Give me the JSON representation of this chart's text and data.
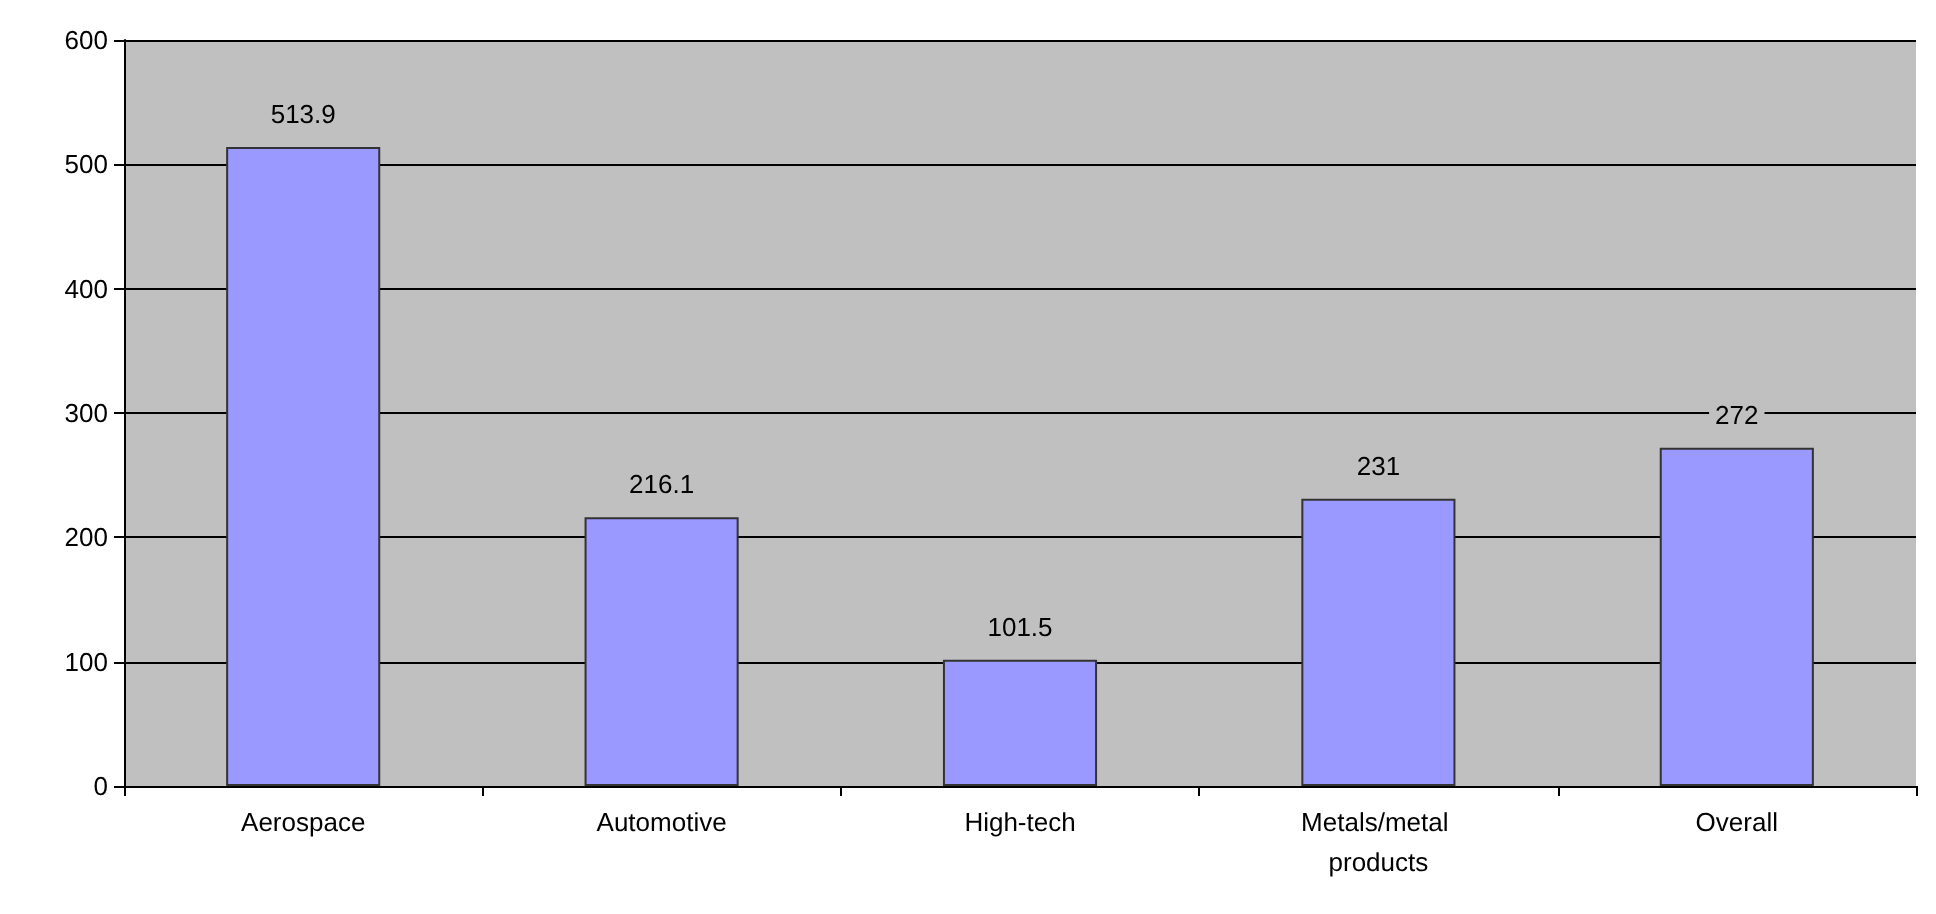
{
  "chart_data": {
    "type": "bar",
    "categories": [
      "Aerospace",
      "Automotive",
      "High-tech",
      "Metals/metal products",
      "Overall"
    ],
    "values": [
      513.9,
      216.1,
      101.5,
      231,
      272
    ],
    "color": "#9999ff",
    "ylim": [
      0,
      600
    ],
    "yticks": [
      0,
      100,
      200,
      300,
      400,
      500,
      600
    ],
    "grid": "y",
    "data_labels": true
  }
}
